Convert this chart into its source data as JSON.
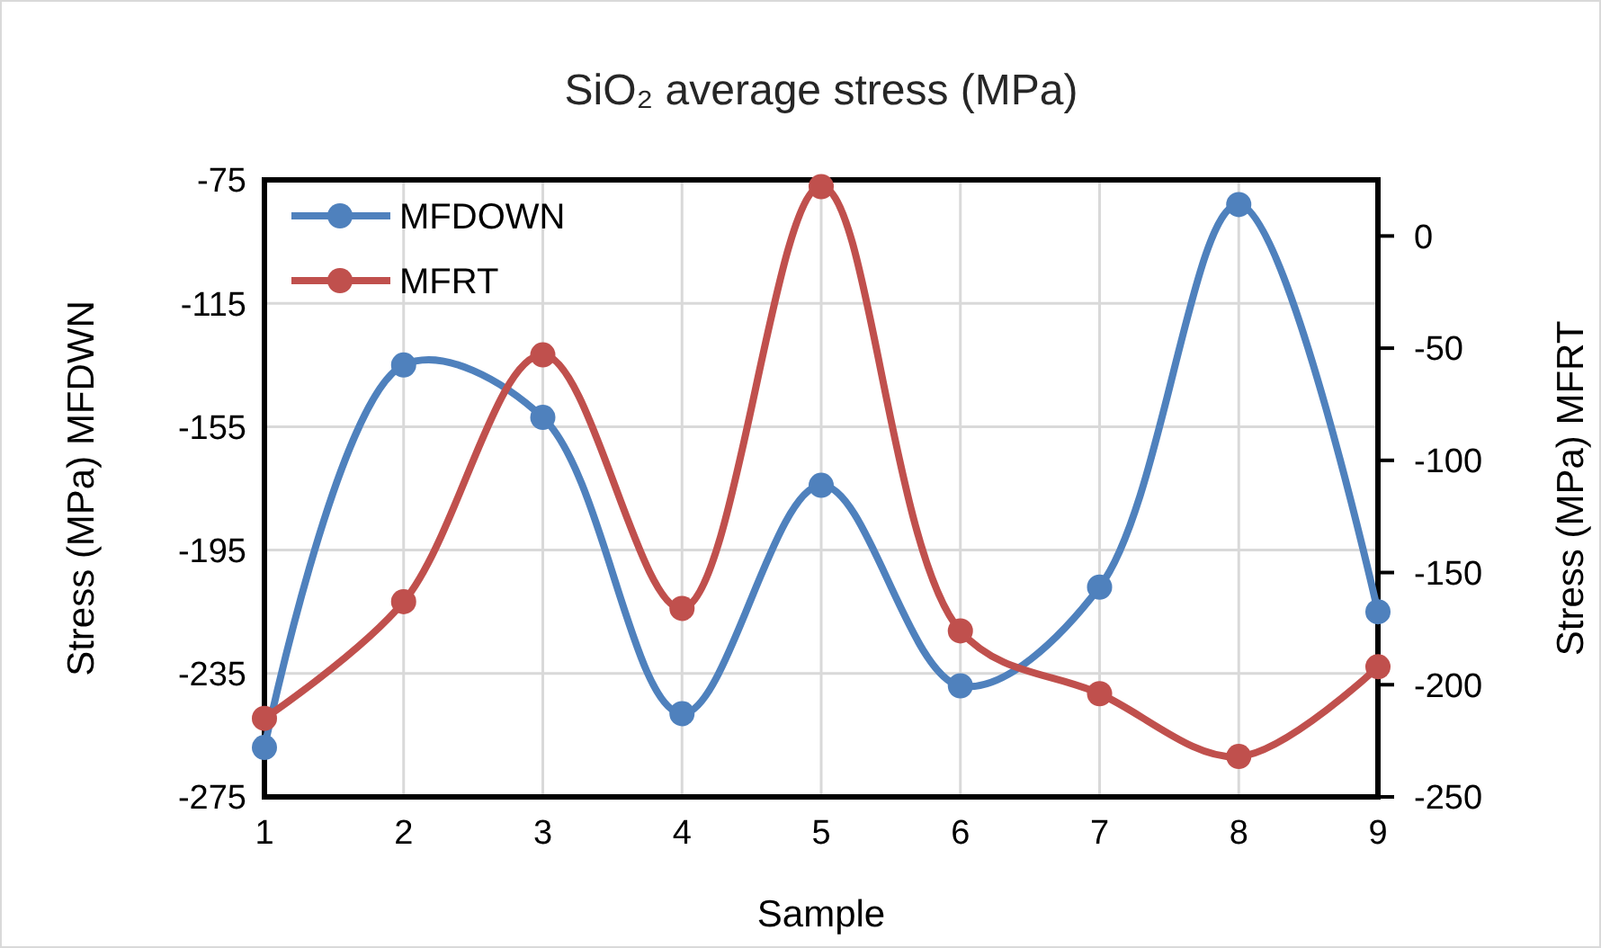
{
  "chart_data": {
    "type": "line",
    "title": "SiO₂ average stress (MPa)",
    "xlabel": "Sample",
    "ylabel": "Stress (MPa) MFDWN",
    "y2label": "Stress (MPa) MFRT",
    "x": [
      1,
      2,
      3,
      4,
      5,
      6,
      7,
      8,
      9
    ],
    "xlim": [
      1,
      9
    ],
    "xticks": [
      1,
      2,
      3,
      4,
      5,
      6,
      7,
      8,
      9
    ],
    "ylim": [
      -275,
      -75
    ],
    "yticks": [
      -275,
      -235,
      -195,
      -155,
      -115,
      -75
    ],
    "y2lim": [
      -250,
      25
    ],
    "y2ticks": [
      -250,
      -200,
      -150,
      -100,
      -50,
      0
    ],
    "grid": true,
    "legend": "top left",
    "marker": "circle",
    "line_style": "solid",
    "series": [
      {
        "name": "MFDOWN",
        "color": "#4f81bd",
        "values": [
          -259,
          -135,
          -152,
          -248,
          -174,
          -239,
          -207,
          -83,
          -215
        ]
      },
      {
        "name": "MFRT",
        "color": "#c0504d",
        "axis": "y2",
        "values": [
          -215,
          -163,
          -53,
          -166,
          22,
          -176,
          -204,
          -232,
          -192
        ]
      }
    ]
  }
}
